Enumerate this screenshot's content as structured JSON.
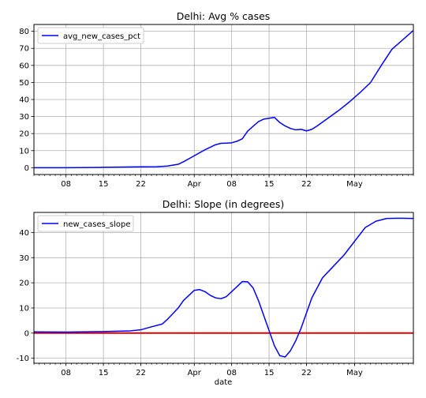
{
  "chart_data": [
    {
      "type": "line",
      "title": "Delhi: Avg % cases",
      "xlabel": "",
      "ylabel": "",
      "ylim": [
        -4,
        84
      ],
      "yticks": [
        0,
        10,
        20,
        30,
        40,
        50,
        60,
        70,
        80
      ],
      "x_range": [
        "2020-03-02",
        "2020-05-12"
      ],
      "xticks": [
        {
          "date": "2020-03-08",
          "label": "08"
        },
        {
          "date": "2020-03-15",
          "label": "15"
        },
        {
          "date": "2020-03-22",
          "label": "22"
        },
        {
          "date": "2020-04-01",
          "label": "Apr"
        },
        {
          "date": "2020-04-08",
          "label": "08"
        },
        {
          "date": "2020-04-15",
          "label": "15"
        },
        {
          "date": "2020-04-22",
          "label": "22"
        },
        {
          "date": "2020-05-01",
          "label": "May"
        }
      ],
      "grid": true,
      "legend": "upper left",
      "series": [
        {
          "name": "avg_new_cases_pct",
          "color": "#0000ff",
          "points": [
            [
              "2020-03-02",
              0
            ],
            [
              "2020-03-08",
              0
            ],
            [
              "2020-03-15",
              0.2
            ],
            [
              "2020-03-22",
              0.5
            ],
            [
              "2020-03-25",
              0.6
            ],
            [
              "2020-03-27",
              1.0
            ],
            [
              "2020-03-29",
              2.0
            ],
            [
              "2020-03-30",
              3.5
            ],
            [
              "2020-04-01",
              7.0
            ],
            [
              "2020-04-03",
              10.5
            ],
            [
              "2020-04-05",
              13.5
            ],
            [
              "2020-04-06",
              14.3
            ],
            [
              "2020-04-07",
              14.4
            ],
            [
              "2020-04-08",
              14.6
            ],
            [
              "2020-04-09",
              15.5
            ],
            [
              "2020-04-10",
              17.0
            ],
            [
              "2020-04-11",
              21.5
            ],
            [
              "2020-04-13",
              27.0
            ],
            [
              "2020-04-14",
              28.5
            ],
            [
              "2020-04-15",
              29.0
            ],
            [
              "2020-04-16",
              29.5
            ],
            [
              "2020-04-17",
              26.5
            ],
            [
              "2020-04-18",
              24.5
            ],
            [
              "2020-04-19",
              23.0
            ],
            [
              "2020-04-20",
              22.2
            ],
            [
              "2020-04-21",
              22.5
            ],
            [
              "2020-04-22",
              21.6
            ],
            [
              "2020-04-23",
              22.5
            ],
            [
              "2020-04-24",
              24.5
            ],
            [
              "2020-04-26",
              29.0
            ],
            [
              "2020-04-28",
              33.5
            ],
            [
              "2020-04-30",
              38.5
            ],
            [
              "2020-05-02",
              44.0
            ],
            [
              "2020-05-04",
              50.0
            ],
            [
              "2020-05-06",
              60.0
            ],
            [
              "2020-05-08",
              69.5
            ],
            [
              "2020-05-10",
              75.0
            ],
            [
              "2020-05-12",
              80.5
            ]
          ]
        }
      ],
      "hlines": []
    },
    {
      "type": "line",
      "title": "Delhi: Slope (in degrees)",
      "xlabel": "date",
      "ylabel": "",
      "ylim": [
        -12,
        48
      ],
      "yticks": [
        -10,
        0,
        10,
        20,
        30,
        40
      ],
      "x_range": [
        "2020-03-02",
        "2020-05-12"
      ],
      "xticks": [
        {
          "date": "2020-03-08",
          "label": "08"
        },
        {
          "date": "2020-03-15",
          "label": "15"
        },
        {
          "date": "2020-03-22",
          "label": "22"
        },
        {
          "date": "2020-04-01",
          "label": "Apr"
        },
        {
          "date": "2020-04-08",
          "label": "08"
        },
        {
          "date": "2020-04-15",
          "label": "15"
        },
        {
          "date": "2020-04-22",
          "label": "22"
        },
        {
          "date": "2020-05-01",
          "label": "May"
        }
      ],
      "grid": true,
      "legend": "upper left",
      "series": [
        {
          "name": "new_cases_slope",
          "color": "#0000ff",
          "points": [
            [
              "2020-03-02",
              0.5
            ],
            [
              "2020-03-08",
              0.4
            ],
            [
              "2020-03-15",
              0.6
            ],
            [
              "2020-03-20",
              0.9
            ],
            [
              "2020-03-22",
              1.3
            ],
            [
              "2020-03-24",
              2.5
            ],
            [
              "2020-03-26",
              3.6
            ],
            [
              "2020-03-27",
              5.5
            ],
            [
              "2020-03-29",
              10.0
            ],
            [
              "2020-03-30",
              13.0
            ],
            [
              "2020-04-01",
              17.0
            ],
            [
              "2020-04-02",
              17.3
            ],
            [
              "2020-04-03",
              16.5
            ],
            [
              "2020-04-04",
              15.0
            ],
            [
              "2020-04-05",
              14.0
            ],
            [
              "2020-04-06",
              13.7
            ],
            [
              "2020-04-07",
              14.5
            ],
            [
              "2020-04-08",
              16.5
            ],
            [
              "2020-04-09",
              18.5
            ],
            [
              "2020-04-10",
              20.5
            ],
            [
              "2020-04-11",
              20.4
            ],
            [
              "2020-04-12",
              18.0
            ],
            [
              "2020-04-13",
              13.0
            ],
            [
              "2020-04-14",
              7.0
            ],
            [
              "2020-04-15",
              1.0
            ],
            [
              "2020-04-16",
              -5.0
            ],
            [
              "2020-04-17",
              -9.0
            ],
            [
              "2020-04-18",
              -9.5
            ],
            [
              "2020-04-19",
              -7.0
            ],
            [
              "2020-04-20",
              -3.0
            ],
            [
              "2020-04-21",
              2.0
            ],
            [
              "2020-04-23",
              14.0
            ],
            [
              "2020-04-25",
              22.0
            ],
            [
              "2020-04-27",
              26.5
            ],
            [
              "2020-04-29",
              31.0
            ],
            [
              "2020-05-01",
              36.5
            ],
            [
              "2020-05-03",
              42.0
            ],
            [
              "2020-05-05",
              44.5
            ],
            [
              "2020-05-07",
              45.6
            ],
            [
              "2020-05-09",
              45.7
            ],
            [
              "2020-05-12",
              45.6
            ]
          ]
        }
      ],
      "hlines": [
        {
          "y": 0,
          "color": "#dd0000"
        }
      ]
    }
  ]
}
